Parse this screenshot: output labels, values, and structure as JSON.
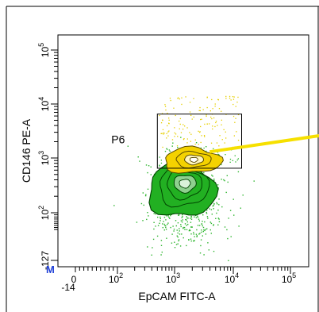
{
  "chart_data": {
    "type": "scatter",
    "subtype": "flow-cytometry-contour",
    "xlabel": "EpCAM FITC-A",
    "ylabel": "CD146 PE-A",
    "x_scale": "biexponential",
    "y_scale": "biexponential",
    "xlim": [
      -14,
      200000
    ],
    "ylim": [
      -127,
      200000
    ],
    "x_ticks": [
      {
        "label": "-14",
        "value": -14
      },
      {
        "label": "0",
        "value": 0
      },
      {
        "label": "10^2",
        "base": "10",
        "exp": "2",
        "value": 100
      },
      {
        "label": "10^3",
        "base": "10",
        "exp": "3",
        "value": 1000
      },
      {
        "label": "10^4",
        "base": "10",
        "exp": "4",
        "value": 10000
      },
      {
        "label": "10^5",
        "base": "10",
        "exp": "5",
        "value": 100000
      }
    ],
    "y_ticks": [
      {
        "label": "-127",
        "value": -127
      },
      {
        "label": "10^2",
        "base": "10",
        "exp": "2",
        "value": 100
      },
      {
        "label": "10^3",
        "base": "10",
        "exp": "3",
        "value": 1000
      },
      {
        "label": "10^4",
        "base": "10",
        "exp": "4",
        "value": 10000
      },
      {
        "label": "10^5",
        "base": "10",
        "exp": "5",
        "value": 100000
      }
    ],
    "gates": [
      {
        "name": "P6",
        "x_range": [
          500,
          14000
        ],
        "y_range": [
          650,
          6500
        ]
      }
    ],
    "populations": [
      {
        "name": "main",
        "color": "#00a000",
        "center": [
          1500,
          330
        ]
      },
      {
        "name": "P6",
        "color": "#f2d000",
        "center": [
          2000,
          900
        ]
      }
    ],
    "corner_mark": "M",
    "grid": false,
    "colors": {
      "main_fill": "#22b022",
      "main_core": "#8fd08f",
      "main_line": "#004400",
      "gate_fill": "#f4d200",
      "gate_core": "#fff5c0",
      "gate_line": "#5a4a00",
      "gate_box": "#000000",
      "arrow": "#f6e000",
      "scatter_green": "#2db52d",
      "scatter_yellow": "#e6cf00",
      "corner_mark": "#1f3fd6"
    }
  }
}
